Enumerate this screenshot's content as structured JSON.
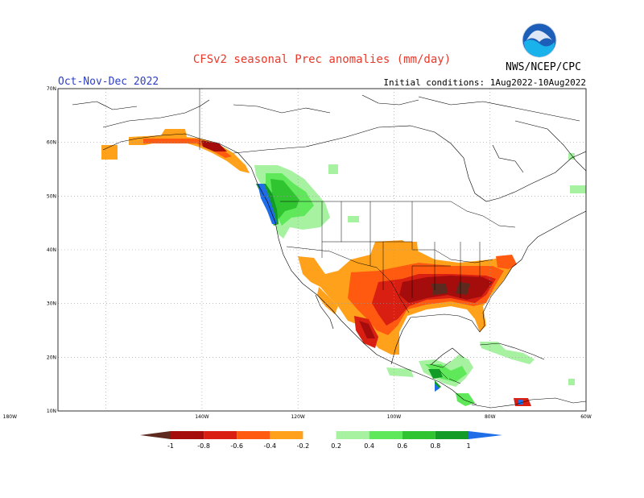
{
  "header": {
    "title": "CFSv2 seasonal Prec anomalies (mm/day)",
    "agency": "NWS/NCEP/CPC",
    "season": "Oct-Nov-Dec 2022",
    "initial_conditions": "Initial conditions: 1Aug2022-10Aug2022"
  },
  "logo": {
    "icon": "noaa-logo-icon",
    "text": "NOAA"
  },
  "map": {
    "lat_labels": [
      "70N",
      "60N",
      "50N",
      "40N",
      "30N",
      "20N",
      "10N"
    ],
    "lon_labels": [
      "180W",
      "140W",
      "120W",
      "100W",
      "80W",
      "60W"
    ],
    "lat_range": [
      10,
      70
    ],
    "lon_range": [
      -170,
      -60
    ],
    "grid": "dotted"
  },
  "colorbar": {
    "labels": [
      "-1",
      "-0.8",
      "-0.6",
      "-0.4",
      "-0.2",
      "0.2",
      "0.4",
      "0.6",
      "0.8",
      "1"
    ],
    "colors": [
      "#5c2a1e",
      "#a50d0d",
      "#d81f12",
      "#ff5a10",
      "#ffa11a",
      "#ffffff",
      "#a6f2a0",
      "#5ee85a",
      "#31c431",
      "#139b27",
      "#1f6ee8"
    ]
  }
}
